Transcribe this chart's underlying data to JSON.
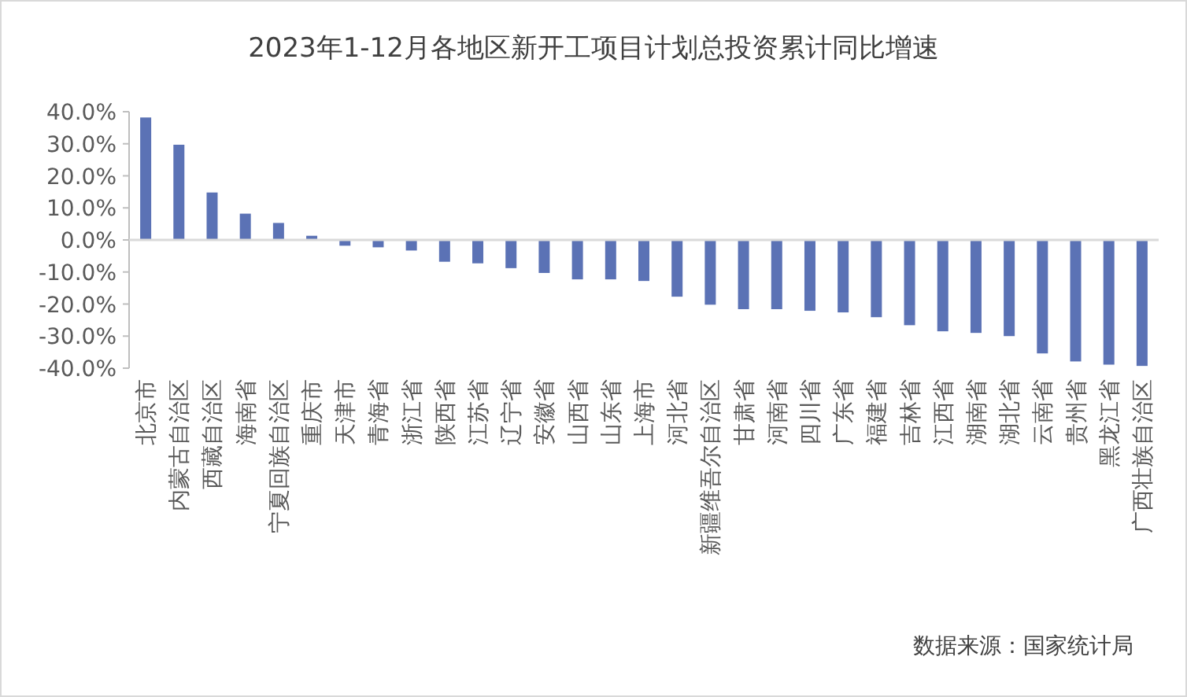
{
  "chart_data": {
    "type": "bar",
    "title": "2023年1-12月各地区新开工项目计划总投资累计同比增速",
    "categories": [
      "北京市",
      "内蒙古自治区",
      "西藏自治区",
      "海南省",
      "宁夏回族自治区",
      "重庆市",
      "天津市",
      "青海省",
      "浙江省",
      "陕西省",
      "江苏省",
      "辽宁省",
      "安徽省",
      "山西省",
      "山东省",
      "上海市",
      "河北省",
      "新疆维吾尔自治区",
      "甘肃省",
      "河南省",
      "四川省",
      "广东省",
      "福建省",
      "吉林省",
      "江西省",
      "湖南省",
      "湖北省",
      "云南省",
      "贵州省",
      "黑龙江省",
      "广西壮族自治区"
    ],
    "values": [
      38.2,
      29.7,
      14.8,
      8.2,
      5.3,
      1.3,
      -1.8,
      -2.3,
      -3.3,
      -6.8,
      -7.3,
      -8.8,
      -10.3,
      -12.3,
      -12.3,
      -12.8,
      -17.7,
      -20.2,
      -21.6,
      -21.6,
      -22.1,
      -22.6,
      -24.1,
      -26.6,
      -28.5,
      -29.0,
      -30.0,
      -35.4,
      -37.9,
      -38.9,
      -39.3
    ],
    "color": "#5b72b5",
    "ylim": [
      -40,
      40
    ],
    "yticks": [
      {
        "value": 40,
        "label": "40.0%"
      },
      {
        "value": 30,
        "label": "30.0%"
      },
      {
        "value": 20,
        "label": "20.0%"
      },
      {
        "value": 10,
        "label": "10.0%"
      },
      {
        "value": 0,
        "label": "0.0%"
      },
      {
        "value": -10,
        "label": "-10.0%"
      },
      {
        "value": -20,
        "label": "-20.0%"
      },
      {
        "value": -30,
        "label": "-30.0%"
      },
      {
        "value": -40,
        "label": "-40.0%"
      }
    ],
    "legend": false,
    "annotations": [
      "数据来源：国家统计局"
    ]
  }
}
